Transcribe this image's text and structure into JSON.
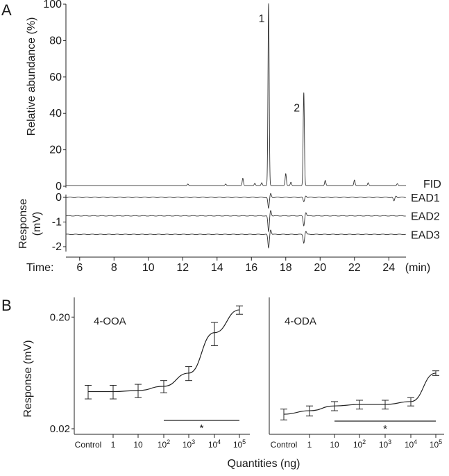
{
  "panels": {
    "a": "A",
    "b": "B"
  },
  "chart_data": [
    {
      "type": "line",
      "title": "",
      "xlabel": "Time:",
      "x_unit": "(min)",
      "ylabel": "Relative abundance (%)",
      "xlim": [
        5.2,
        25.0
      ],
      "ylim": [
        0,
        100
      ],
      "x_ticks": [
        6,
        8,
        10,
        12,
        14,
        16,
        18,
        20,
        22,
        24
      ],
      "y_ticks": [
        0,
        20,
        40,
        60,
        80,
        100
      ],
      "trace_label": "FID",
      "peaks": [
        {
          "label": "1",
          "x": 17.0,
          "y": 100
        },
        {
          "label": "2",
          "x": 19.05,
          "y": 51
        }
      ],
      "minor_peaks": [
        {
          "x": 12.3,
          "y": 0.8
        },
        {
          "x": 14.5,
          "y": 0.8
        },
        {
          "x": 15.5,
          "y": 4
        },
        {
          "x": 16.2,
          "y": 1.2
        },
        {
          "x": 16.6,
          "y": 1.5
        },
        {
          "x": 18.0,
          "y": 6.5
        },
        {
          "x": 18.3,
          "y": 1.8
        },
        {
          "x": 20.3,
          "y": 2.8
        },
        {
          "x": 22.0,
          "y": 3.0
        },
        {
          "x": 22.8,
          "y": 1.5
        },
        {
          "x": 24.5,
          "y": 1.0
        }
      ]
    },
    {
      "type": "line",
      "title": "",
      "ylabel": "Response",
      "y_unit": "(mV)",
      "ylim": [
        -2.2,
        0.2
      ],
      "y_ticks": [
        0,
        -1,
        -2
      ],
      "series": [
        {
          "name": "EAD1",
          "baseline": 0,
          "deflections": [
            {
              "x": 17.0,
              "y": -0.45
            },
            {
              "x": 19.05,
              "y": -0.18
            },
            {
              "x": 24.3,
              "y": -0.15
            }
          ]
        },
        {
          "name": "EAD2",
          "baseline": -0.75,
          "deflections": [
            {
              "x": 17.0,
              "y": -0.65
            },
            {
              "x": 19.05,
              "y": -0.4
            }
          ]
        },
        {
          "name": "EAD3",
          "baseline": -1.5,
          "deflections": [
            {
              "x": 17.0,
              "y": -0.55
            },
            {
              "x": 19.05,
              "y": -0.35
            }
          ]
        }
      ]
    },
    {
      "type": "line",
      "title": "4-OOA",
      "xlabel": "Quantities (ng)",
      "ylabel": "Response (mV)",
      "yscale": "log",
      "ylim": [
        0.02,
        0.3
      ],
      "y_ticks": [
        "0.02",
        "0.20"
      ],
      "categories": [
        "Control",
        "1",
        "10",
        "10^2",
        "10^3",
        "10^4",
        "10^5"
      ],
      "values": [
        0.043,
        0.043,
        0.044,
        0.048,
        0.063,
        0.145,
        0.232
      ],
      "errors": [
        0.006,
        0.006,
        0.006,
        0.006,
        0.009,
        0.034,
        0.02
      ],
      "significance": {
        "label": "*",
        "from": "10^2",
        "to": "10^5"
      }
    },
    {
      "type": "line",
      "title": "4-ODA",
      "xlabel": "Quantities (ng)",
      "ylabel": "Response (mV)",
      "yscale": "log",
      "ylim": [
        0.02,
        0.3
      ],
      "categories": [
        "Control",
        "1",
        "10",
        "10^2",
        "10^3",
        "10^4",
        "10^5"
      ],
      "values": [
        0.027,
        0.029,
        0.032,
        0.033,
        0.033,
        0.035,
        0.063
      ],
      "errors": [
        0.003,
        0.003,
        0.003,
        0.003,
        0.003,
        0.003,
        0.003
      ],
      "significance": {
        "label": "*",
        "from": "10",
        "to": "10^5"
      }
    }
  ]
}
